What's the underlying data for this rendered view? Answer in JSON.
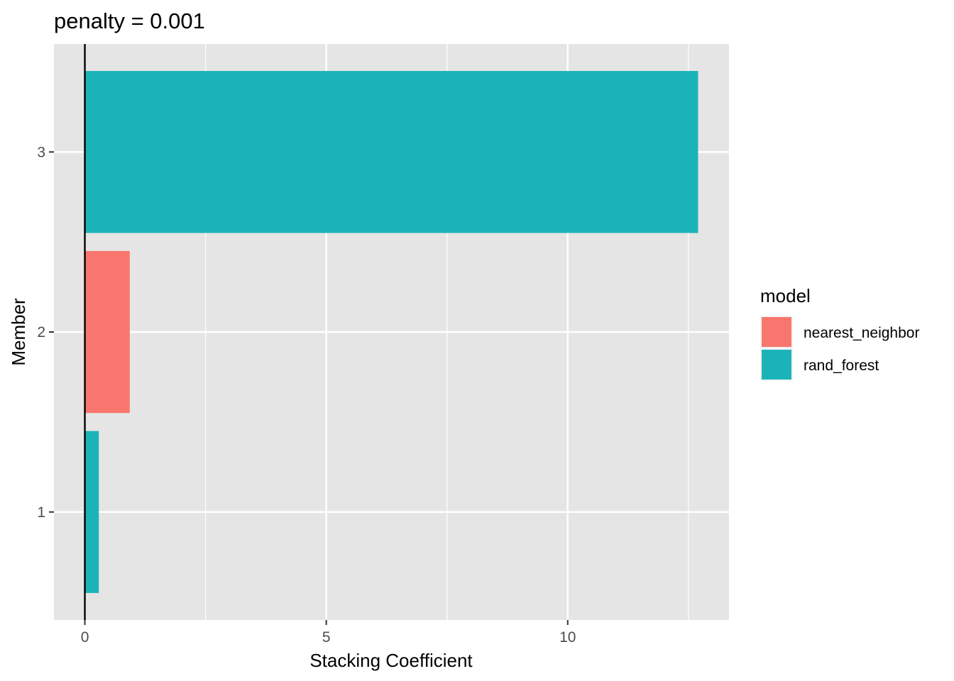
{
  "chart_data": {
    "type": "bar",
    "orientation": "horizontal",
    "title": "penalty = 0.001",
    "xlabel": "Stacking Coefficient",
    "ylabel": "Member",
    "categories": [
      "1",
      "2",
      "3"
    ],
    "values": [
      0.29,
      0.93,
      12.7
    ],
    "series_model": [
      "rand_forest",
      "nearest_neighbor",
      "rand_forest"
    ],
    "xlim": [
      -0.64,
      13.34
    ],
    "x_ticks": [
      0,
      5,
      10
    ],
    "x_tick_labels": [
      "0",
      "5",
      "10"
    ],
    "grid": true,
    "reference_line_x": 0,
    "legend": {
      "title": "model",
      "position": "right",
      "entries": [
        {
          "label": "nearest_neighbor",
          "color": "#F8766D"
        },
        {
          "label": "rand_forest",
          "color": "#00BFC4"
        }
      ]
    },
    "colors": {
      "panel_background": "#E5E5E5",
      "grid": "#FFFFFF",
      "nearest_neighbor": "#F8766D",
      "rand_forest": "#1AB4B8"
    }
  }
}
